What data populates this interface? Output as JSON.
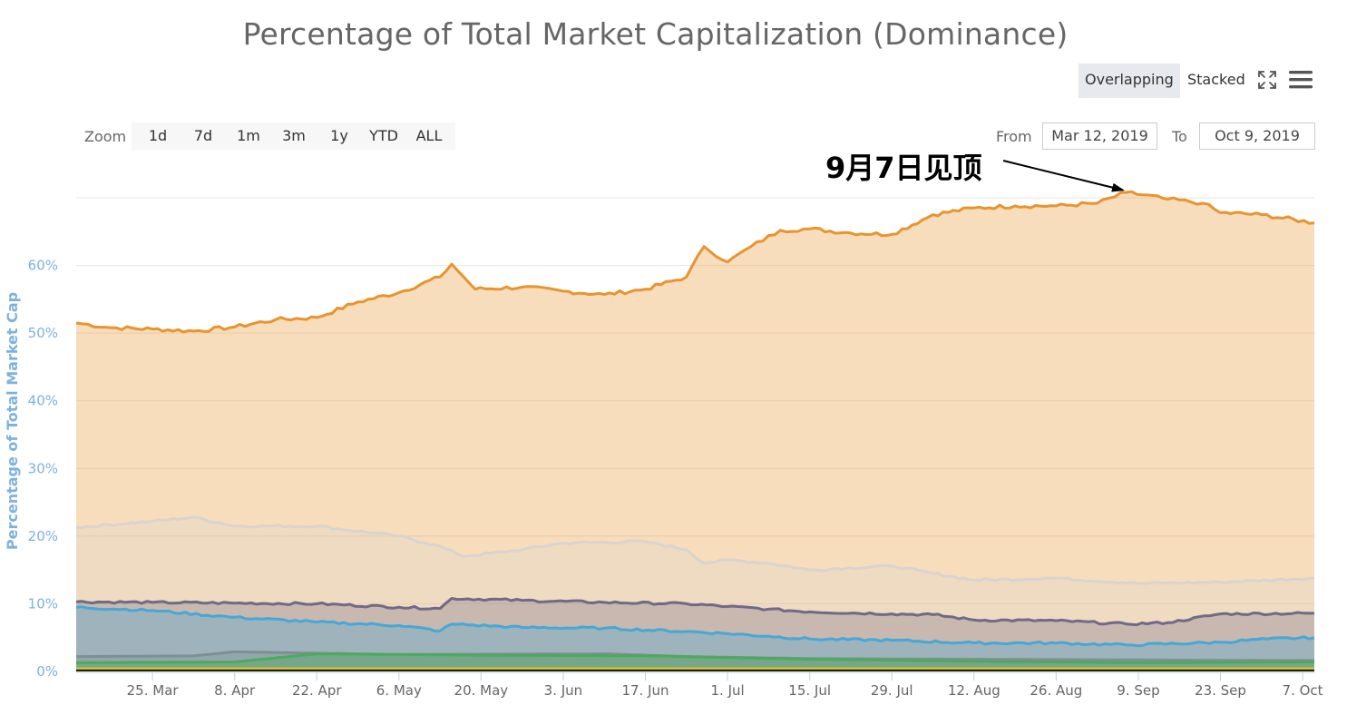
{
  "title": "Percentage of Total Market Capitalization (Dominance)",
  "toolbar": {
    "mode_overlapping": "Overlapping",
    "mode_stacked": "Stacked",
    "active_mode": "Overlapping",
    "fullscreen_icon": "fullscreen-icon",
    "menu_icon": "hamburger-menu-icon"
  },
  "zoom": {
    "label": "Zoom",
    "buttons": [
      "1d",
      "7d",
      "1m",
      "3m",
      "1y",
      "YTD",
      "ALL"
    ]
  },
  "range": {
    "from_label": "From",
    "from_value": "Mar 12, 2019",
    "to_label": "To",
    "to_value": "Oct 9, 2019"
  },
  "annotation": {
    "text": "9月7日见顶",
    "date": "2019-09-07"
  },
  "chart_data": {
    "type": "area",
    "ylabel": "Percentage of Total Market Cap",
    "xlabel": "",
    "ylim": [
      0,
      70
    ],
    "yticks": [
      0,
      10,
      20,
      30,
      40,
      50,
      60
    ],
    "ytick_labels": [
      "0%",
      "10%",
      "20%",
      "30%",
      "40%",
      "50%",
      "60%"
    ],
    "xlim": [
      "2019-03-12",
      "2019-10-09"
    ],
    "xtick_dates": [
      "2019-03-25",
      "2019-04-08",
      "2019-04-22",
      "2019-05-06",
      "2019-05-20",
      "2019-06-03",
      "2019-06-17",
      "2019-07-01",
      "2019-07-15",
      "2019-07-29",
      "2019-08-12",
      "2019-08-26",
      "2019-09-09",
      "2019-09-23",
      "2019-10-07"
    ],
    "xtick_labels": [
      "25. Mar",
      "8. Apr",
      "22. Apr",
      "6. May",
      "20. May",
      "3. Jun",
      "17. Jun",
      "1. Jul",
      "15. Jul",
      "29. Jul",
      "12. Aug",
      "26. Aug",
      "9. Sep",
      "23. Sep",
      "7. Oct"
    ],
    "grid": true,
    "colors": {
      "series1": "#e8942f",
      "series2": "#d9d4d0",
      "series3": "#6f6a86",
      "series4": "#45a8d8",
      "series5": "#7f8f94",
      "series6": "#4caa5b",
      "series7": "#d4c62a",
      "series8": "#1a1a1a"
    },
    "series": [
      {
        "x": [
          "2019-03-12",
          "2019-03-18",
          "2019-03-25",
          "2019-04-01",
          "2019-04-08",
          "2019-04-15",
          "2019-04-22",
          "2019-04-29",
          "2019-05-06",
          "2019-05-13",
          "2019-05-15",
          "2019-05-19",
          "2019-05-27",
          "2019-06-03",
          "2019-06-10",
          "2019-06-17",
          "2019-06-24",
          "2019-06-27",
          "2019-07-01",
          "2019-07-05",
          "2019-07-10",
          "2019-07-15",
          "2019-07-22",
          "2019-07-29",
          "2019-08-05",
          "2019-08-12",
          "2019-08-19",
          "2019-08-26",
          "2019-09-02",
          "2019-09-07",
          "2019-09-14",
          "2019-09-20",
          "2019-09-23",
          "2019-09-30",
          "2019-10-09"
        ],
        "values": [
          51.5,
          50.8,
          50.6,
          50.3,
          50.9,
          52.0,
          52.3,
          54.6,
          56.0,
          58.3,
          60.2,
          56.5,
          56.8,
          56.2,
          55.7,
          56.5,
          58.3,
          62.8,
          60.5,
          62.8,
          65.2,
          65.4,
          64.8,
          64.6,
          67.5,
          68.5,
          68.8,
          68.8,
          69.2,
          70.8,
          69.8,
          69.2,
          67.8,
          67.5,
          66.3
        ]
      },
      {
        "x": [
          "2019-03-12",
          "2019-03-25",
          "2019-04-01",
          "2019-04-08",
          "2019-04-22",
          "2019-05-06",
          "2019-05-13",
          "2019-05-17",
          "2019-05-27",
          "2019-06-03",
          "2019-06-17",
          "2019-06-24",
          "2019-06-27",
          "2019-07-01",
          "2019-07-08",
          "2019-07-15",
          "2019-07-29",
          "2019-08-05",
          "2019-08-12",
          "2019-08-26",
          "2019-09-09",
          "2019-09-23",
          "2019-10-09"
        ],
        "values": [
          21.3,
          22.2,
          22.8,
          21.5,
          21.5,
          20.0,
          18.5,
          17.0,
          18.0,
          19.0,
          19.2,
          18.0,
          16.0,
          16.5,
          16.0,
          15.0,
          15.6,
          14.5,
          13.5,
          13.8,
          13.0,
          13.2,
          13.8
        ]
      },
      {
        "x": [
          "2019-03-12",
          "2019-03-25",
          "2019-04-08",
          "2019-04-22",
          "2019-05-06",
          "2019-05-13",
          "2019-05-15",
          "2019-05-27",
          "2019-06-10",
          "2019-06-24",
          "2019-07-01",
          "2019-07-08",
          "2019-07-15",
          "2019-07-29",
          "2019-08-05",
          "2019-08-12",
          "2019-08-26",
          "2019-09-07",
          "2019-09-14",
          "2019-09-23",
          "2019-10-09"
        ],
        "values": [
          10.3,
          10.2,
          10.1,
          10.0,
          9.5,
          9.3,
          10.8,
          10.5,
          10.2,
          10.0,
          9.6,
          9.2,
          8.8,
          8.5,
          8.4,
          7.6,
          7.5,
          7.0,
          7.2,
          8.5,
          8.6
        ]
      },
      {
        "x": [
          "2019-03-12",
          "2019-03-25",
          "2019-04-08",
          "2019-04-22",
          "2019-05-06",
          "2019-05-13",
          "2019-05-15",
          "2019-05-27",
          "2019-06-10",
          "2019-06-24",
          "2019-07-01",
          "2019-07-08",
          "2019-07-15",
          "2019-07-29",
          "2019-08-12",
          "2019-08-26",
          "2019-09-07",
          "2019-09-23",
          "2019-10-01",
          "2019-10-09"
        ],
        "values": [
          9.5,
          9.0,
          8.0,
          7.3,
          6.8,
          6.0,
          7.0,
          6.5,
          6.4,
          5.9,
          5.6,
          5.2,
          4.8,
          4.6,
          4.2,
          4.2,
          3.9,
          4.3,
          4.8,
          5.0
        ]
      },
      {
        "x": [
          "2019-03-12",
          "2019-04-01",
          "2019-04-08",
          "2019-05-06",
          "2019-06-10",
          "2019-06-24",
          "2019-07-15",
          "2019-08-12",
          "2019-09-09",
          "2019-10-09"
        ],
        "values": [
          2.2,
          2.3,
          2.9,
          2.5,
          2.6,
          2.2,
          1.9,
          1.8,
          1.7,
          1.6
        ]
      },
      {
        "x": [
          "2019-03-12",
          "2019-04-08",
          "2019-04-22",
          "2019-05-20",
          "2019-06-17",
          "2019-07-15",
          "2019-08-12",
          "2019-09-09",
          "2019-10-09"
        ],
        "values": [
          1.3,
          1.4,
          2.6,
          2.4,
          2.3,
          1.8,
          1.5,
          1.3,
          1.4
        ]
      },
      {
        "x": [
          "2019-03-12",
          "2019-10-09"
        ],
        "values": [
          0.4,
          0.4
        ]
      },
      {
        "x": [
          "2019-03-12",
          "2019-10-09"
        ],
        "values": [
          0.15,
          0.15
        ]
      }
    ]
  }
}
